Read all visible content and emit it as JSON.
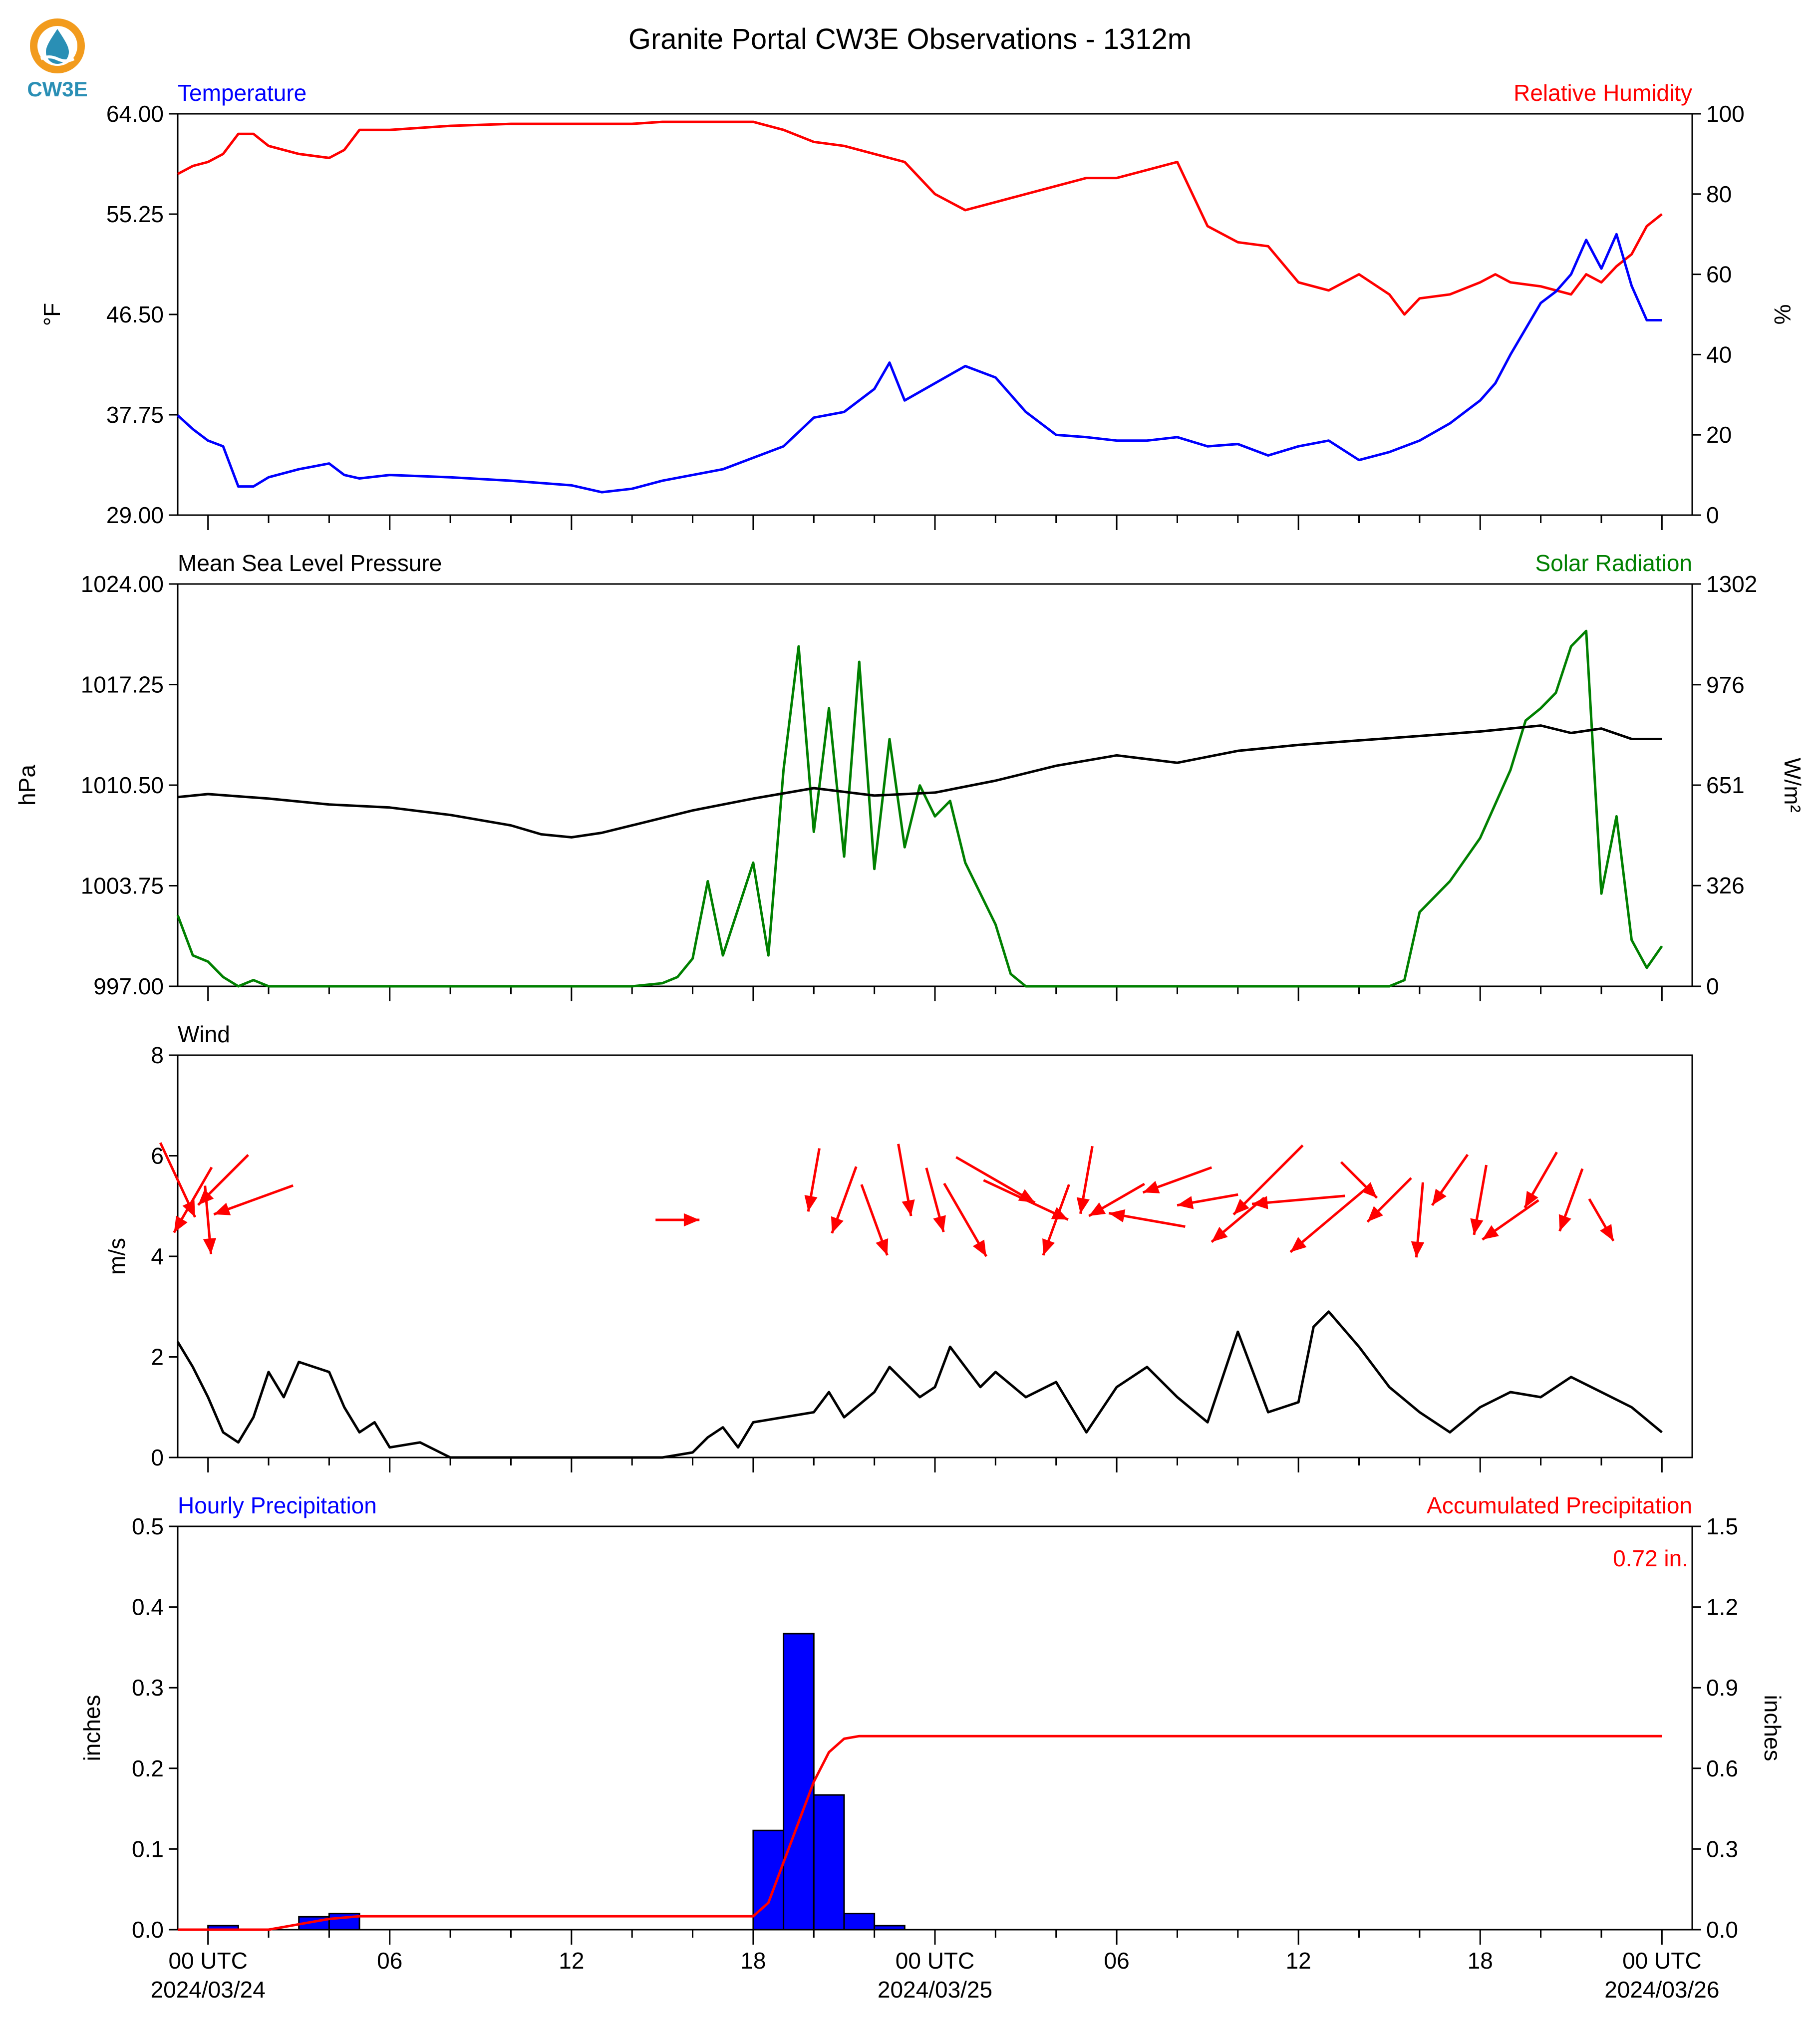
{
  "title": "Granite Portal CW3E Observations - 1312m",
  "logo": {
    "text": "CW3E",
    "icon": "cw3e-water-drop-logo-icon"
  },
  "colors": {
    "temp": "#0000ff",
    "rh": "#ff0000",
    "pressure": "#000000",
    "solar": "#008000",
    "wind": "#000000",
    "wind_barbs": "#ff0000",
    "precip_bar": "#0000ff",
    "accum": "#ff0000"
  },
  "x_axis": {
    "range_hours": [
      -1,
      49
    ],
    "major_ticks": [
      {
        "h": 0,
        "line1": "00 UTC",
        "line2": "2024/03/24"
      },
      {
        "h": 6,
        "line1": "06",
        "line2": ""
      },
      {
        "h": 12,
        "line1": "12",
        "line2": ""
      },
      {
        "h": 18,
        "line1": "18",
        "line2": ""
      },
      {
        "h": 24,
        "line1": "00 UTC",
        "line2": "2024/03/25"
      },
      {
        "h": 30,
        "line1": "06",
        "line2": ""
      },
      {
        "h": 36,
        "line1": "12",
        "line2": ""
      },
      {
        "h": 42,
        "line1": "18",
        "line2": ""
      },
      {
        "h": 48,
        "line1": "00 UTC",
        "line2": "2024/03/26"
      }
    ],
    "minor_step_hours": 2
  },
  "chart_data": [
    {
      "type": "line",
      "panel": "temperature-humidity",
      "left_title": "Temperature",
      "right_title": "Relative Humidity",
      "ylabel_left": "°F",
      "ylabel_right": "%",
      "ylim_left": [
        29,
        64
      ],
      "ylim_right": [
        0,
        100
      ],
      "yticks_left": [
        "29.00",
        "37.75",
        "46.50",
        "55.25",
        "64.00"
      ],
      "yticks_right": [
        "0",
        "20",
        "40",
        "60",
        "80",
        "100"
      ],
      "series": [
        {
          "name": "Temperature",
          "axis": "left",
          "x": [
            -1,
            -0.5,
            0,
            0.5,
            1,
            1.5,
            2,
            3,
            4,
            4.5,
            5,
            6,
            8,
            10,
            12,
            13,
            14,
            15,
            16,
            17,
            18,
            19,
            20,
            21,
            22,
            22.5,
            23,
            24,
            25,
            26,
            27,
            28,
            29,
            30,
            31,
            32,
            33,
            34,
            35,
            36,
            37,
            38,
            39,
            40,
            41,
            42,
            42.5,
            43,
            44,
            44.5,
            45,
            45.5,
            46,
            46.5,
            47,
            47.5,
            48
          ],
          "values": [
            37.7,
            36.5,
            35.5,
            35.0,
            31.5,
            31.5,
            32.3,
            33.0,
            33.5,
            32.5,
            32.2,
            32.5,
            32.3,
            32.0,
            31.6,
            31.0,
            31.3,
            32.0,
            32.5,
            33.0,
            34.0,
            35.0,
            37.5,
            38.0,
            40.0,
            42.3,
            39.0,
            40.5,
            42.0,
            41.0,
            38.0,
            36.0,
            35.8,
            35.5,
            35.5,
            35.8,
            35.0,
            35.2,
            34.2,
            35.0,
            35.5,
            33.8,
            34.5,
            35.5,
            37.0,
            39.0,
            40.5,
            43.0,
            47.5,
            48.5,
            50.0,
            53.0,
            50.5,
            53.5,
            49.0,
            46.0,
            46.0
          ]
        },
        {
          "name": "Relative Humidity",
          "axis": "right",
          "x": [
            -1,
            -0.5,
            0,
            0.5,
            1,
            1.5,
            2,
            3,
            4,
            4.5,
            5,
            6,
            8,
            10,
            12,
            14,
            15,
            16,
            17,
            18,
            19,
            20,
            21,
            22,
            23,
            24,
            25,
            26,
            27,
            28,
            29,
            30,
            31,
            32,
            33,
            34,
            35,
            36,
            37,
            38,
            39,
            39.5,
            40,
            41,
            42,
            42.5,
            43,
            44,
            45,
            45.5,
            46,
            46.5,
            47,
            47.5,
            48
          ],
          "values": [
            85,
            87,
            88,
            90,
            95,
            95,
            92,
            90,
            89,
            91,
            96,
            96,
            97,
            97.5,
            97.5,
            97.5,
            98,
            98,
            98,
            98,
            96,
            93,
            92,
            90,
            88,
            80,
            76,
            78,
            80,
            82,
            84,
            84,
            86,
            88,
            72,
            68,
            67,
            58,
            56,
            60,
            55,
            50,
            54,
            55,
            58,
            60,
            58,
            57,
            55,
            60,
            58,
            62,
            65,
            72,
            75
          ]
        }
      ]
    },
    {
      "type": "line",
      "panel": "pressure-solar",
      "left_title": "Mean Sea Level Pressure",
      "right_title": "Solar Radiation",
      "ylabel_left": "hPa",
      "ylabel_right": "W/m²",
      "ylim_left": [
        997,
        1024
      ],
      "ylim_right": [
        0,
        1302
      ],
      "yticks_left": [
        "997.00",
        "1003.75",
        "1010.50",
        "1017.25",
        "1024.00"
      ],
      "yticks_right": [
        "0",
        "326",
        "651",
        "976",
        "1302"
      ],
      "series": [
        {
          "name": "Mean Sea Level Pressure",
          "axis": "left",
          "x": [
            -1,
            0,
            2,
            4,
            6,
            8,
            10,
            11,
            12,
            13,
            14,
            16,
            18,
            20,
            22,
            24,
            26,
            28,
            30,
            32,
            34,
            36,
            38,
            40,
            42,
            44,
            45,
            46,
            47,
            48
          ],
          "values": [
            1009.7,
            1009.9,
            1009.6,
            1009.2,
            1009.0,
            1008.5,
            1007.8,
            1007.2,
            1007.0,
            1007.3,
            1007.8,
            1008.8,
            1009.6,
            1010.3,
            1009.8,
            1010.0,
            1010.8,
            1011.8,
            1012.5,
            1012.0,
            1012.8,
            1013.2,
            1013.5,
            1013.8,
            1014.1,
            1014.5,
            1014.0,
            1014.3,
            1013.6,
            1013.6
          ]
        },
        {
          "name": "Solar Radiation",
          "axis": "right",
          "x": [
            -1,
            -0.5,
            0,
            0.5,
            1,
            1.5,
            2,
            3,
            6,
            10,
            14,
            15,
            15.5,
            16,
            16.5,
            17,
            17.5,
            18,
            18.5,
            19,
            19.5,
            20,
            20.5,
            21,
            21.5,
            22,
            22.5,
            23,
            23.5,
            24,
            24.5,
            25,
            26,
            26.5,
            27,
            30,
            34,
            38,
            39,
            39.5,
            40,
            41,
            42,
            43,
            43.5,
            44,
            44.5,
            45,
            45.5,
            46,
            46.5,
            47,
            47.5,
            48
          ],
          "values": [
            230,
            100,
            80,
            30,
            0,
            20,
            0,
            0,
            0,
            0,
            0,
            10,
            30,
            90,
            340,
            100,
            250,
            400,
            100,
            700,
            1100,
            500,
            900,
            420,
            1050,
            380,
            800,
            450,
            650,
            550,
            600,
            400,
            200,
            40,
            0,
            0,
            0,
            0,
            0,
            20,
            240,
            340,
            480,
            700,
            860,
            900,
            950,
            1100,
            1150,
            300,
            550,
            150,
            60,
            130
          ]
        }
      ]
    },
    {
      "type": "line",
      "panel": "wind",
      "left_title": "Wind",
      "ylabel_left": "m/s",
      "ylim": [
        0,
        8
      ],
      "yticks": [
        "0",
        "2",
        "4",
        "6",
        "8"
      ],
      "series": [
        {
          "name": "Wind",
          "x": [
            -1,
            -0.5,
            0,
            0.5,
            1,
            1.5,
            2,
            2.5,
            3,
            4,
            4.5,
            5,
            5.5,
            6,
            7,
            8,
            10,
            12,
            14,
            15,
            16,
            16.5,
            17,
            17.5,
            18,
            19,
            20,
            20.5,
            21,
            22,
            22.5,
            23,
            23.5,
            24,
            24.5,
            25,
            25.5,
            26,
            27,
            28,
            28.5,
            29,
            30,
            31,
            32,
            33,
            34,
            35,
            36,
            36.5,
            37,
            38,
            39,
            40,
            41,
            42,
            43,
            44,
            45,
            46,
            47,
            48
          ],
          "values": [
            2.3,
            1.8,
            1.2,
            0.5,
            0.3,
            0.8,
            1.7,
            1.2,
            1.9,
            1.7,
            1.0,
            0.5,
            0.7,
            0.2,
            0.3,
            0.0,
            0.0,
            0.0,
            0.0,
            0.0,
            0.1,
            0.4,
            0.6,
            0.2,
            0.7,
            0.8,
            0.9,
            1.3,
            0.8,
            1.3,
            1.8,
            1.5,
            1.2,
            1.4,
            2.2,
            1.8,
            1.4,
            1.7,
            1.2,
            1.5,
            1.0,
            0.5,
            1.4,
            1.8,
            1.2,
            0.7,
            2.5,
            0.9,
            1.1,
            2.6,
            2.9,
            2.2,
            1.4,
            0.9,
            0.5,
            1.0,
            1.3,
            1.2,
            1.6,
            1.3,
            1.0,
            0.5
          ]
        },
        {
          "name": "Wind Direction",
          "kind": "vectors",
          "x": [
            -1,
            -0.5,
            0,
            0.5,
            1.5,
            15.5,
            20,
            21,
            22,
            23,
            24,
            25,
            26,
            27,
            28,
            29,
            30,
            31,
            32,
            33,
            34,
            35,
            36,
            37,
            38,
            39,
            40,
            41,
            42,
            43,
            44,
            45,
            46
          ],
          "angle_deg": [
            155,
            210,
            175,
            225,
            250,
            90,
            190,
            200,
            160,
            170,
            165,
            150,
            120,
            115,
            200,
            190,
            240,
            280,
            250,
            260,
            230,
            225,
            265,
            230,
            135,
            225,
            185,
            215,
            190,
            235,
            210,
            200,
            150
          ],
          "speed": [
            2.1,
            1.8,
            1.5,
            1.6,
            2.2,
            0.4,
            1.3,
            1.6,
            1.8,
            1.7,
            1.4,
            2.2,
            2.5,
            2.6,
            1.8,
            1.5,
            1.3,
            1.9,
            1.7,
            1.2,
            1.5,
            2.8,
            2.6,
            2.9,
            0.7,
            1.2,
            1.8,
            1.2,
            1.6,
            1.5,
            1.3,
            1.4,
            0.6
          ]
        }
      ]
    },
    {
      "type": "bar",
      "panel": "precipitation",
      "left_title": "Hourly Precipitation",
      "right_title": "Accumulated Precipitation",
      "ylabel_left": "inches",
      "ylabel_right": "inches",
      "ylim_left": [
        0,
        0.5
      ],
      "ylim_right": [
        0,
        1.5
      ],
      "yticks_left": [
        "0.0",
        "0.1",
        "0.2",
        "0.3",
        "0.4",
        "0.5"
      ],
      "yticks_right": [
        "0.0",
        "0.3",
        "0.6",
        "0.9",
        "1.2",
        "1.5"
      ],
      "annotation": "0.72 in.",
      "series": [
        {
          "name": "Hourly Precipitation",
          "axis": "left",
          "x": [
            0,
            3,
            4,
            18,
            19,
            20,
            21,
            22
          ],
          "values": [
            0.005,
            0.016,
            0.02,
            0.123,
            0.367,
            0.167,
            0.02,
            0.005
          ]
        },
        {
          "name": "Accumulated Precipitation",
          "axis": "right",
          "x": [
            -1,
            1,
            2,
            3,
            4,
            5,
            6,
            12,
            18,
            18.5,
            19,
            19.5,
            20,
            20.5,
            21,
            21.5,
            22,
            24,
            30,
            36,
            42,
            48
          ],
          "values": [
            0,
            0,
            0,
            0.02,
            0.04,
            0.05,
            0.05,
            0.05,
            0.05,
            0.1,
            0.25,
            0.4,
            0.55,
            0.66,
            0.71,
            0.72,
            0.72,
            0.72,
            0.72,
            0.72,
            0.72,
            0.72
          ]
        }
      ]
    }
  ]
}
